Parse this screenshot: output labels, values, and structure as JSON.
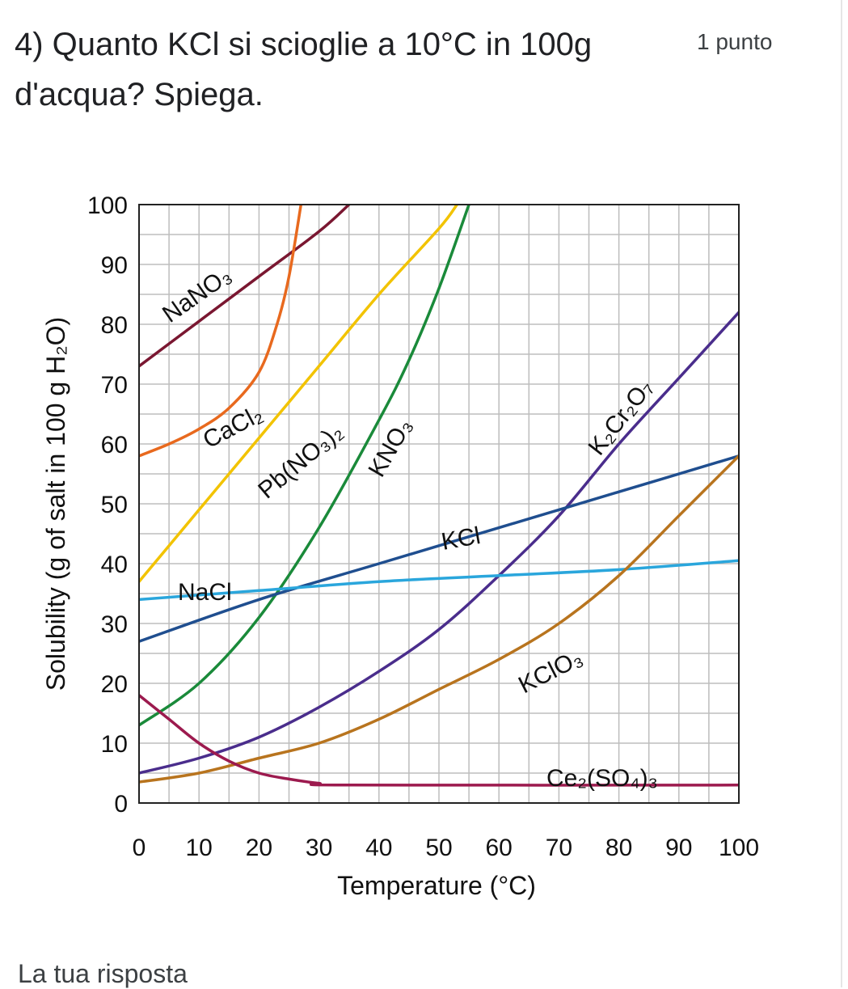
{
  "question": {
    "text": "4) Quanto KCl si scioglie a 10°C in 100g d'acqua? Spiega.",
    "points": "1 punto"
  },
  "answer": {
    "label": "La tua risposta"
  },
  "chart_data": {
    "type": "line",
    "title": "",
    "xlabel": "Temperature (°C)",
    "ylabel": "Solubility (g of salt in 100 g H₂O)",
    "xlim": [
      0,
      100
    ],
    "ylim": [
      0,
      100
    ],
    "x_ticks": [
      "0",
      "10",
      "20",
      "30",
      "40",
      "50",
      "60",
      "70",
      "80",
      "90",
      "100"
    ],
    "y_ticks": [
      "0",
      "10",
      "20",
      "30",
      "40",
      "50",
      "60",
      "70",
      "80",
      "90",
      "100"
    ],
    "grid": true,
    "series": [
      {
        "name": "NaNO₃",
        "color": "#7a1731",
        "points": [
          [
            0,
            73
          ],
          [
            10,
            80.5
          ],
          [
            20,
            88
          ],
          [
            30,
            95.5
          ],
          [
            35,
            100
          ]
        ]
      },
      {
        "name": "CaCl₂",
        "color": "#e8691e",
        "points": [
          [
            0,
            58
          ],
          [
            5,
            60
          ],
          [
            10,
            62.5
          ],
          [
            15,
            66
          ],
          [
            20,
            72
          ],
          [
            23,
            80
          ],
          [
            25,
            88
          ],
          [
            27,
            100
          ]
        ]
      },
      {
        "name": "Pb(NO₃)₂",
        "color": "#f2c300",
        "points": [
          [
            0,
            37
          ],
          [
            10,
            49
          ],
          [
            20,
            61
          ],
          [
            30,
            73
          ],
          [
            40,
            85
          ],
          [
            50,
            96
          ],
          [
            53,
            100
          ]
        ]
      },
      {
        "name": "KNO₃",
        "color": "#1a8a3a",
        "points": [
          [
            0,
            13
          ],
          [
            10,
            20
          ],
          [
            20,
            31
          ],
          [
            30,
            46
          ],
          [
            40,
            64
          ],
          [
            45,
            74
          ],
          [
            50,
            86
          ],
          [
            55,
            100
          ]
        ]
      },
      {
        "name": "K₂Cr₂O₇",
        "color": "#4a2d8c",
        "points": [
          [
            0,
            5
          ],
          [
            10,
            7.5
          ],
          [
            20,
            11
          ],
          [
            30,
            16
          ],
          [
            40,
            22
          ],
          [
            50,
            29
          ],
          [
            60,
            38
          ],
          [
            70,
            48
          ],
          [
            80,
            60
          ],
          [
            90,
            71
          ],
          [
            100,
            82
          ]
        ]
      },
      {
        "name": "KCl",
        "color": "#1f4e8f",
        "points": [
          [
            0,
            27
          ],
          [
            20,
            34
          ],
          [
            40,
            40
          ],
          [
            60,
            46
          ],
          [
            80,
            52
          ],
          [
            100,
            58
          ]
        ]
      },
      {
        "name": "NaCl",
        "color": "#2aa6dc",
        "points": [
          [
            0,
            34
          ],
          [
            20,
            35.5
          ],
          [
            40,
            37
          ],
          [
            60,
            38
          ],
          [
            80,
            39
          ],
          [
            100,
            40.5
          ]
        ]
      },
      {
        "name": "KClO₃",
        "color": "#b8741e",
        "points": [
          [
            0,
            3.5
          ],
          [
            10,
            5
          ],
          [
            20,
            7.5
          ],
          [
            30,
            10
          ],
          [
            40,
            14
          ],
          [
            50,
            19
          ],
          [
            60,
            24
          ],
          [
            70,
            30
          ],
          [
            80,
            38
          ],
          [
            90,
            48
          ],
          [
            100,
            58
          ]
        ]
      },
      {
        "name": "Ce₂(SO₄)₃",
        "color": "#9c1a4e",
        "points": [
          [
            0,
            18
          ],
          [
            5,
            14
          ],
          [
            10,
            10
          ],
          [
            15,
            7
          ],
          [
            20,
            5
          ],
          [
            25,
            4
          ],
          [
            30,
            3.3
          ],
          [
            35,
            3
          ],
          [
            100,
            3
          ]
        ]
      }
    ]
  }
}
